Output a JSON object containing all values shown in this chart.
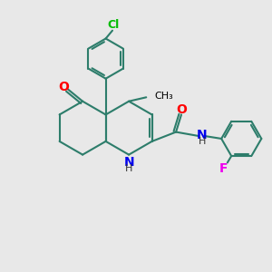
{
  "background_color": "#e8e8e8",
  "bond_color": "#2d7d6b",
  "bond_width": 1.5,
  "atom_colors": {
    "N": "#0000ee",
    "O": "#ff0000",
    "Cl": "#00bb00",
    "F": "#ee00ee",
    "C": "#000000",
    "H": "#000000"
  },
  "font_size": 9
}
